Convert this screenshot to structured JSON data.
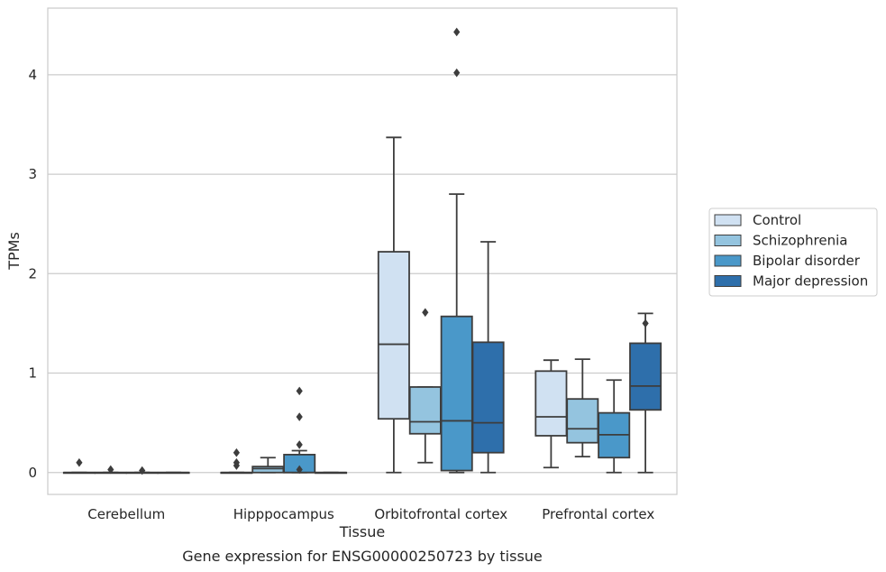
{
  "chart_data": {
    "type": "box",
    "xlabel": "Tissue",
    "ylabel": "TPMs",
    "caption": "Gene expression for ENSG00000250723 by tissue",
    "ylim": [
      -0.22,
      4.67
    ],
    "yticks": [
      0,
      1,
      2,
      3,
      4
    ],
    "grid": "horizontal",
    "legend_position": "right",
    "categories": [
      "Cerebellum",
      "Hipppocampus",
      "Orbitofrontal cortex",
      "Prefrontal cortex"
    ],
    "series": [
      {
        "name": "Control",
        "color": "#d0e1f2",
        "boxes": [
          {
            "whisker_low": 0,
            "q1": 0,
            "median": 0,
            "q3": 0,
            "whisker_high": 0,
            "outliers": [
              0.1
            ]
          },
          {
            "whisker_low": 0,
            "q1": 0,
            "median": 0,
            "q3": 0,
            "whisker_high": 0,
            "outliers": [
              0.07,
              0.1,
              0.2
            ]
          },
          {
            "whisker_low": 0,
            "q1": 0.54,
            "median": 1.29,
            "q3": 2.22,
            "whisker_high": 3.37,
            "outliers": []
          },
          {
            "whisker_low": 0.05,
            "q1": 0.37,
            "median": 0.56,
            "q3": 1.02,
            "whisker_high": 1.13,
            "outliers": []
          }
        ]
      },
      {
        "name": "Schizophrenia",
        "color": "#94c4df",
        "boxes": [
          {
            "whisker_low": 0,
            "q1": 0,
            "median": 0,
            "q3": 0,
            "whisker_high": 0,
            "outliers": [
              0.03
            ]
          },
          {
            "whisker_low": 0,
            "q1": 0,
            "median": 0.04,
            "q3": 0.06,
            "whisker_high": 0.15,
            "outliers": []
          },
          {
            "whisker_low": 0.1,
            "q1": 0.39,
            "median": 0.51,
            "q3": 0.86,
            "whisker_high": 0.86,
            "outliers": [
              1.61
            ]
          },
          {
            "whisker_low": 0.16,
            "q1": 0.3,
            "median": 0.44,
            "q3": 0.74,
            "whisker_high": 1.14,
            "outliers": []
          }
        ]
      },
      {
        "name": "Bipolar disorder",
        "color": "#4a98c9",
        "boxes": [
          {
            "whisker_low": 0,
            "q1": 0,
            "median": 0,
            "q3": 0,
            "whisker_high": 0,
            "outliers": [
              0.02
            ]
          },
          {
            "whisker_low": 0,
            "q1": 0,
            "median": 0,
            "q3": 0.18,
            "whisker_high": 0.22,
            "outliers": [
              0.03,
              0.28,
              0.56,
              0.82
            ]
          },
          {
            "whisker_low": 0,
            "q1": 0.02,
            "median": 0.52,
            "q3": 1.57,
            "whisker_high": 2.8,
            "outliers": [
              4.02,
              4.43
            ]
          },
          {
            "whisker_low": 0,
            "q1": 0.15,
            "median": 0.38,
            "q3": 0.6,
            "whisker_high": 0.93,
            "outliers": []
          }
        ]
      },
      {
        "name": "Major depression",
        "color": "#2e6fab",
        "boxes": [
          {
            "whisker_low": 0,
            "q1": 0,
            "median": 0,
            "q3": 0,
            "whisker_high": 0,
            "outliers": []
          },
          {
            "whisker_low": 0,
            "q1": 0,
            "median": 0,
            "q3": 0,
            "whisker_high": 0,
            "outliers": []
          },
          {
            "whisker_low": 0,
            "q1": 0.2,
            "median": 0.5,
            "q3": 1.31,
            "whisker_high": 2.32,
            "outliers": []
          },
          {
            "whisker_low": 0,
            "q1": 0.63,
            "median": 0.87,
            "q3": 1.3,
            "whisker_high": 1.6,
            "outliers": [
              1.5
            ]
          }
        ]
      }
    ]
  }
}
